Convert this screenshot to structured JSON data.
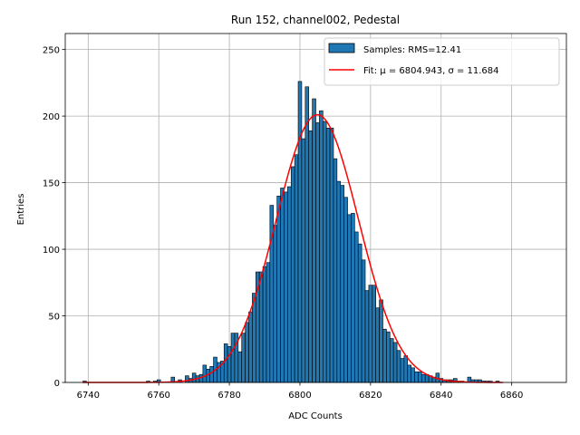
{
  "chart_data": {
    "type": "bar",
    "title": "Run 152, channel002, Pedestal",
    "xlabel": "ADC Counts",
    "ylabel": "Entries",
    "xlim": [
      6733.5,
      6875.5
    ],
    "ylim": [
      0,
      262
    ],
    "xticks": [
      6740,
      6760,
      6780,
      6800,
      6820,
      6840,
      6860
    ],
    "yticks": [
      0,
      50,
      100,
      150,
      200,
      250
    ],
    "grid": true,
    "legend_position": "top-right",
    "legend": {
      "histogram_label": "Samples: RMS=12.41",
      "fit_label": "Fit: μ = 6804.943, σ = 11.684"
    },
    "colors": {
      "bar": "#1f77b4",
      "bar_edge": "#000000",
      "fit": "#ff0000",
      "grid": "#b0b0b0"
    },
    "histogram": {
      "bin_width": 1,
      "bins": [
        [
          6739,
          1
        ],
        [
          6757,
          1
        ],
        [
          6759,
          1
        ],
        [
          6760,
          2
        ],
        [
          6764,
          4
        ],
        [
          6766,
          2
        ],
        [
          6768,
          5
        ],
        [
          6769,
          3
        ],
        [
          6770,
          7
        ],
        [
          6771,
          5
        ],
        [
          6772,
          6
        ],
        [
          6773,
          13
        ],
        [
          6774,
          10
        ],
        [
          6775,
          12
        ],
        [
          6776,
          19
        ],
        [
          6777,
          15
        ],
        [
          6778,
          16
        ],
        [
          6779,
          29
        ],
        [
          6780,
          27
        ],
        [
          6781,
          37
        ],
        [
          6782,
          37
        ],
        [
          6783,
          23
        ],
        [
          6784,
          37
        ],
        [
          6785,
          45
        ],
        [
          6786,
          53
        ],
        [
          6787,
          67
        ],
        [
          6788,
          83
        ],
        [
          6789,
          83
        ],
        [
          6790,
          87
        ],
        [
          6791,
          90
        ],
        [
          6792,
          133
        ],
        [
          6793,
          118
        ],
        [
          6794,
          140
        ],
        [
          6795,
          146
        ],
        [
          6796,
          143
        ],
        [
          6797,
          147
        ],
        [
          6798,
          162
        ],
        [
          6799,
          171
        ],
        [
          6800,
          226
        ],
        [
          6801,
          183
        ],
        [
          6802,
          222
        ],
        [
          6803,
          189
        ],
        [
          6804,
          213
        ],
        [
          6805,
          195
        ],
        [
          6806,
          204
        ],
        [
          6807,
          196
        ],
        [
          6808,
          191
        ],
        [
          6809,
          191
        ],
        [
          6810,
          168
        ],
        [
          6811,
          151
        ],
        [
          6812,
          148
        ],
        [
          6813,
          139
        ],
        [
          6814,
          126
        ],
        [
          6815,
          127
        ],
        [
          6816,
          113
        ],
        [
          6817,
          104
        ],
        [
          6818,
          92
        ],
        [
          6819,
          69
        ],
        [
          6820,
          73
        ],
        [
          6821,
          73
        ],
        [
          6822,
          56
        ],
        [
          6823,
          62
        ],
        [
          6824,
          40
        ],
        [
          6825,
          38
        ],
        [
          6826,
          33
        ],
        [
          6827,
          30
        ],
        [
          6828,
          24
        ],
        [
          6829,
          18
        ],
        [
          6830,
          20
        ],
        [
          6831,
          13
        ],
        [
          6832,
          11
        ],
        [
          6833,
          8
        ],
        [
          6834,
          8
        ],
        [
          6835,
          6
        ],
        [
          6836,
          6
        ],
        [
          6837,
          5
        ],
        [
          6838,
          4
        ],
        [
          6839,
          7
        ],
        [
          6840,
          3
        ],
        [
          6841,
          2
        ],
        [
          6842,
          2
        ],
        [
          6843,
          2
        ],
        [
          6844,
          3
        ],
        [
          6845,
          1
        ],
        [
          6846,
          1
        ],
        [
          6848,
          4
        ],
        [
          6849,
          2
        ],
        [
          6850,
          2
        ],
        [
          6851,
          2
        ],
        [
          6852,
          1
        ],
        [
          6853,
          1
        ],
        [
          6854,
          1
        ],
        [
          6856,
          1
        ]
      ]
    },
    "fit": {
      "mu": 6804.943,
      "sigma": 11.684,
      "amplitude": 201,
      "x_range": [
        6738.5,
        6857.5
      ]
    }
  }
}
